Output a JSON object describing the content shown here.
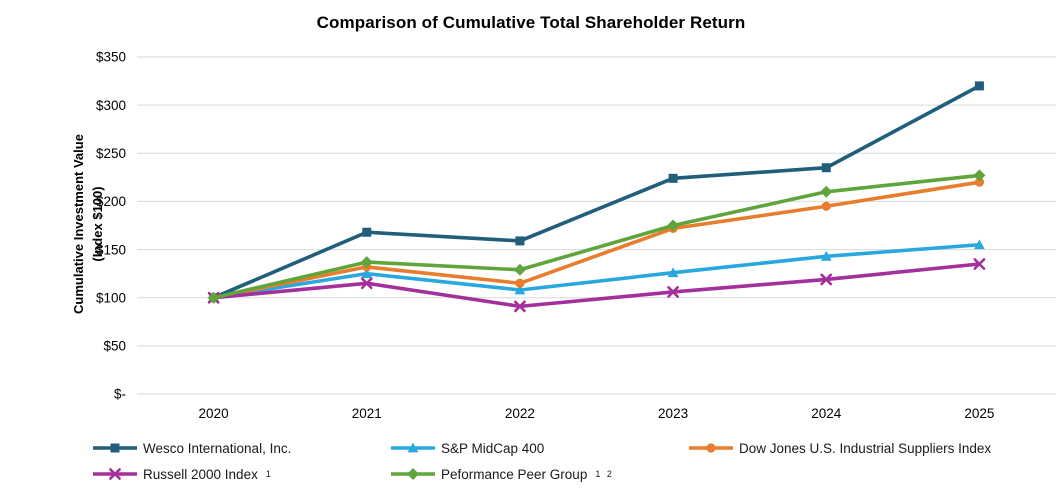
{
  "chart_data": {
    "type": "line",
    "title": "Comparison of Cumulative Total Shareholder Return",
    "ylabel_line1": "Cumulative Investment Value",
    "ylabel_line2": "(Index $100)",
    "xlabel": "",
    "categories": [
      "2020",
      "2021",
      "2022",
      "2023",
      "2024",
      "2025"
    ],
    "y_ticks": [
      "$350",
      "$300",
      "$250",
      "$200",
      "$150",
      "$100",
      "$50",
      "$-"
    ],
    "y_tick_values": [
      350,
      300,
      250,
      200,
      150,
      100,
      50,
      0
    ],
    "ylim": [
      0,
      350
    ],
    "grid": true,
    "gridline_color": "#d9d9d9",
    "legend_position": "bottom",
    "series": [
      {
        "name": "Wesco International, Inc.",
        "superscript": "",
        "color": "#205E7C",
        "marker": "square",
        "values": [
          100,
          168,
          159,
          224,
          235,
          320
        ]
      },
      {
        "name": "S&P MidCap 400",
        "superscript": "",
        "color": "#29A8DF",
        "marker": "triangle",
        "values": [
          100,
          125,
          108,
          126,
          143,
          155
        ]
      },
      {
        "name": "Dow Jones U.S. Industrial Suppliers Index",
        "superscript": "",
        "color": "#E87D2E",
        "marker": "circle",
        "values": [
          100,
          132,
          115,
          172,
          195,
          220
        ]
      },
      {
        "name": "Russell 2000 Index",
        "superscript": "1",
        "color": "#A3309B",
        "marker": "x",
        "values": [
          100,
          115,
          91,
          106,
          119,
          135
        ]
      },
      {
        "name": "Peformance Peer Group",
        "superscript": "1 2",
        "color": "#5FA53C",
        "marker": "diamond",
        "values": [
          100,
          137,
          129,
          175,
          210,
          227
        ]
      }
    ]
  }
}
